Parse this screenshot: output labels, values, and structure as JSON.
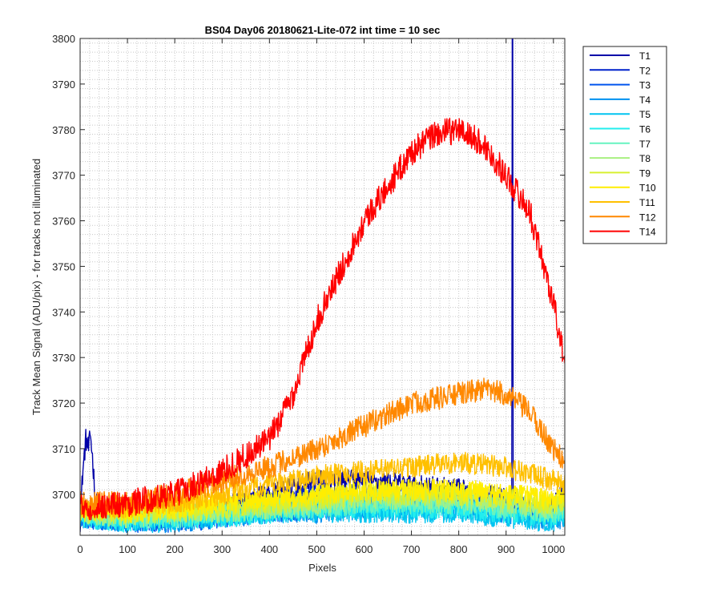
{
  "chart_data": {
    "type": "line",
    "title": "BS04 Day06 20180621-Lite-072 int time = 10 sec",
    "xlabel": "Pixels",
    "ylabel": "Track Mean Signal (ADU/pix) - for tracks not illuminated",
    "xlim": [
      0,
      1024
    ],
    "ylim": [
      3691,
      3800
    ],
    "xticks": [
      0,
      100,
      200,
      300,
      400,
      500,
      600,
      700,
      800,
      900,
      1000
    ],
    "yticks": [
      3700,
      3710,
      3720,
      3730,
      3740,
      3750,
      3760,
      3770,
      3780,
      3790,
      3800
    ],
    "grid": "major and minor, dotted",
    "legend_position": "outside-top-right",
    "series": [
      {
        "name": "T1",
        "color": "#0000a8",
        "points": [
          [
            0,
            3694
          ],
          [
            5,
            3704
          ],
          [
            12,
            3712
          ],
          [
            18,
            3710
          ],
          [
            22,
            3713
          ],
          [
            27,
            3707
          ],
          [
            32,
            3699
          ],
          [
            40,
            3696
          ],
          [
            100,
            3695
          ],
          [
            200,
            3695
          ],
          [
            300,
            3697
          ],
          [
            400,
            3700
          ],
          [
            500,
            3703
          ],
          [
            600,
            3703
          ],
          [
            700,
            3702
          ],
          [
            800,
            3701
          ],
          [
            900,
            3699
          ],
          [
            912,
            3699
          ],
          [
            913,
            3800
          ],
          [
            914,
            3800
          ],
          [
            915,
            3699
          ],
          [
            950,
            3696
          ],
          [
            1000,
            3697
          ],
          [
            1024,
            3702
          ]
        ]
      },
      {
        "name": "T2",
        "color": "#0022cc",
        "points": [
          [
            0,
            3695
          ],
          [
            100,
            3695
          ],
          [
            200,
            3695
          ],
          [
            300,
            3696
          ],
          [
            400,
            3698
          ],
          [
            500,
            3700
          ],
          [
            600,
            3700
          ],
          [
            700,
            3699
          ],
          [
            800,
            3699
          ],
          [
            900,
            3698
          ],
          [
            1000,
            3696
          ],
          [
            1024,
            3697
          ]
        ]
      },
      {
        "name": "T3",
        "color": "#0055ee",
        "points": [
          [
            0,
            3695
          ],
          [
            100,
            3694
          ],
          [
            200,
            3694
          ],
          [
            300,
            3695
          ],
          [
            400,
            3696
          ],
          [
            500,
            3697
          ],
          [
            600,
            3698
          ],
          [
            700,
            3698
          ],
          [
            800,
            3698
          ],
          [
            900,
            3697
          ],
          [
            1000,
            3695
          ],
          [
            1024,
            3696
          ]
        ]
      },
      {
        "name": "T4",
        "color": "#0090f0",
        "points": [
          [
            0,
            3695
          ],
          [
            100,
            3694
          ],
          [
            200,
            3694
          ],
          [
            300,
            3695
          ],
          [
            400,
            3696
          ],
          [
            500,
            3696
          ],
          [
            600,
            3697
          ],
          [
            700,
            3697
          ],
          [
            800,
            3697
          ],
          [
            900,
            3696
          ],
          [
            1000,
            3694
          ],
          [
            1024,
            3695
          ]
        ]
      },
      {
        "name": "T5",
        "color": "#00c4f0",
        "points": [
          [
            0,
            3695
          ],
          [
            100,
            3694
          ],
          [
            200,
            3694
          ],
          [
            300,
            3695
          ],
          [
            400,
            3696
          ],
          [
            500,
            3696
          ],
          [
            600,
            3696
          ],
          [
            700,
            3696
          ],
          [
            800,
            3696
          ],
          [
            900,
            3695
          ],
          [
            1000,
            3694
          ],
          [
            1024,
            3695
          ]
        ]
      },
      {
        "name": "T6",
        "color": "#22eeee",
        "points": [
          [
            0,
            3695
          ],
          [
            100,
            3694
          ],
          [
            200,
            3695
          ],
          [
            300,
            3695
          ],
          [
            400,
            3696
          ],
          [
            500,
            3697
          ],
          [
            600,
            3697
          ],
          [
            700,
            3697
          ],
          [
            800,
            3697
          ],
          [
            900,
            3696
          ],
          [
            1000,
            3695
          ],
          [
            1024,
            3696
          ]
        ]
      },
      {
        "name": "T7",
        "color": "#66f4c0",
        "points": [
          [
            0,
            3696
          ],
          [
            100,
            3695
          ],
          [
            200,
            3695
          ],
          [
            300,
            3696
          ],
          [
            400,
            3697
          ],
          [
            500,
            3697
          ],
          [
            600,
            3698
          ],
          [
            700,
            3698
          ],
          [
            800,
            3698
          ],
          [
            900,
            3697
          ],
          [
            1000,
            3696
          ],
          [
            1024,
            3697
          ]
        ]
      },
      {
        "name": "T8",
        "color": "#a8f080",
        "points": [
          [
            0,
            3696
          ],
          [
            100,
            3695
          ],
          [
            200,
            3696
          ],
          [
            300,
            3696
          ],
          [
            400,
            3697
          ],
          [
            500,
            3698
          ],
          [
            600,
            3699
          ],
          [
            700,
            3699
          ],
          [
            800,
            3699
          ],
          [
            900,
            3698
          ],
          [
            1000,
            3697
          ],
          [
            1024,
            3698
          ]
        ]
      },
      {
        "name": "T9",
        "color": "#d8f030",
        "points": [
          [
            0,
            3696
          ],
          [
            100,
            3696
          ],
          [
            200,
            3696
          ],
          [
            300,
            3697
          ],
          [
            400,
            3698
          ],
          [
            500,
            3699
          ],
          [
            600,
            3700
          ],
          [
            700,
            3700
          ],
          [
            800,
            3700
          ],
          [
            900,
            3699
          ],
          [
            1000,
            3698
          ],
          [
            1024,
            3699
          ]
        ]
      },
      {
        "name": "T10",
        "color": "#ffee00",
        "points": [
          [
            0,
            3697
          ],
          [
            100,
            3696
          ],
          [
            200,
            3697
          ],
          [
            300,
            3698
          ],
          [
            400,
            3699
          ],
          [
            500,
            3700
          ],
          [
            600,
            3701
          ],
          [
            700,
            3701
          ],
          [
            800,
            3701
          ],
          [
            900,
            3700
          ],
          [
            1000,
            3699
          ],
          [
            1024,
            3700
          ]
        ]
      },
      {
        "name": "T11",
        "color": "#ffc000",
        "points": [
          [
            0,
            3697
          ],
          [
            100,
            3697
          ],
          [
            200,
            3698
          ],
          [
            300,
            3700
          ],
          [
            400,
            3702
          ],
          [
            500,
            3704
          ],
          [
            600,
            3705
          ],
          [
            700,
            3706
          ],
          [
            800,
            3707
          ],
          [
            900,
            3706
          ],
          [
            1000,
            3703
          ],
          [
            1024,
            3702
          ]
        ]
      },
      {
        "name": "T12",
        "color": "#ff8800",
        "points": [
          [
            0,
            3698
          ],
          [
            100,
            3698
          ],
          [
            200,
            3700
          ],
          [
            300,
            3703
          ],
          [
            400,
            3706
          ],
          [
            500,
            3710
          ],
          [
            600,
            3715
          ],
          [
            700,
            3720
          ],
          [
            800,
            3722
          ],
          [
            850,
            3723
          ],
          [
            900,
            3722
          ],
          [
            950,
            3718
          ],
          [
            1000,
            3710
          ],
          [
            1024,
            3707
          ]
        ]
      },
      {
        "name": "T14",
        "color": "#ff0000",
        "points": [
          [
            0,
            3697
          ],
          [
            100,
            3698
          ],
          [
            200,
            3700
          ],
          [
            300,
            3705
          ],
          [
            400,
            3712
          ],
          [
            450,
            3722
          ],
          [
            500,
            3738
          ],
          [
            600,
            3760
          ],
          [
            700,
            3775
          ],
          [
            750,
            3779
          ],
          [
            800,
            3780
          ],
          [
            850,
            3777
          ],
          [
            900,
            3770
          ],
          [
            950,
            3762
          ],
          [
            1000,
            3742
          ],
          [
            1024,
            3729
          ]
        ]
      }
    ]
  }
}
